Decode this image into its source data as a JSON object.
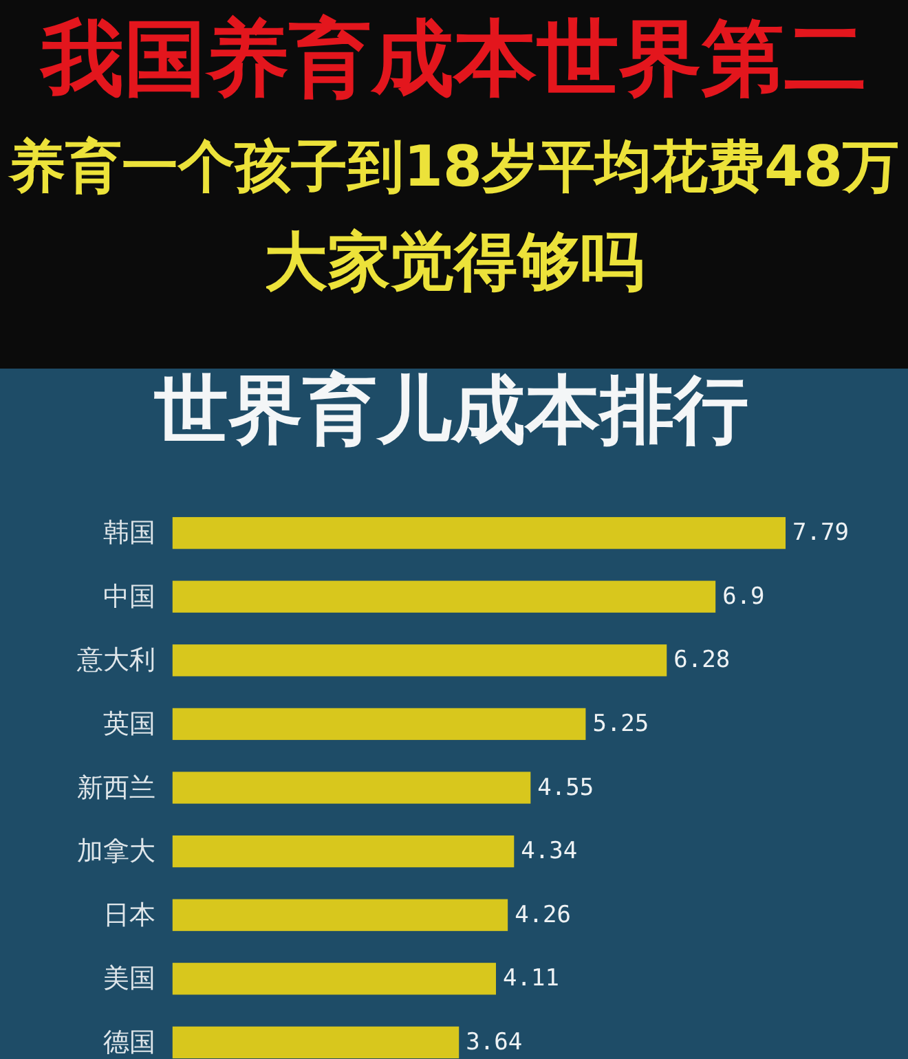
{
  "chart_data": {
    "type": "bar",
    "orientation": "horizontal",
    "title": "世界育儿成本排行",
    "annotations": [
      "我国养育成本世界第二",
      "养育一个孩子到18岁平均花费48万",
      "大家觉得够吗"
    ],
    "categories": [
      "韩国",
      "中国",
      "意大利",
      "英国",
      "新西兰",
      "加拿大",
      "日本",
      "美国",
      "德国"
    ],
    "values": [
      7.79,
      6.9,
      6.28,
      5.25,
      4.55,
      4.34,
      4.26,
      4.11,
      3.64
    ],
    "color": "#d8c71d",
    "data_labels": true
  }
}
